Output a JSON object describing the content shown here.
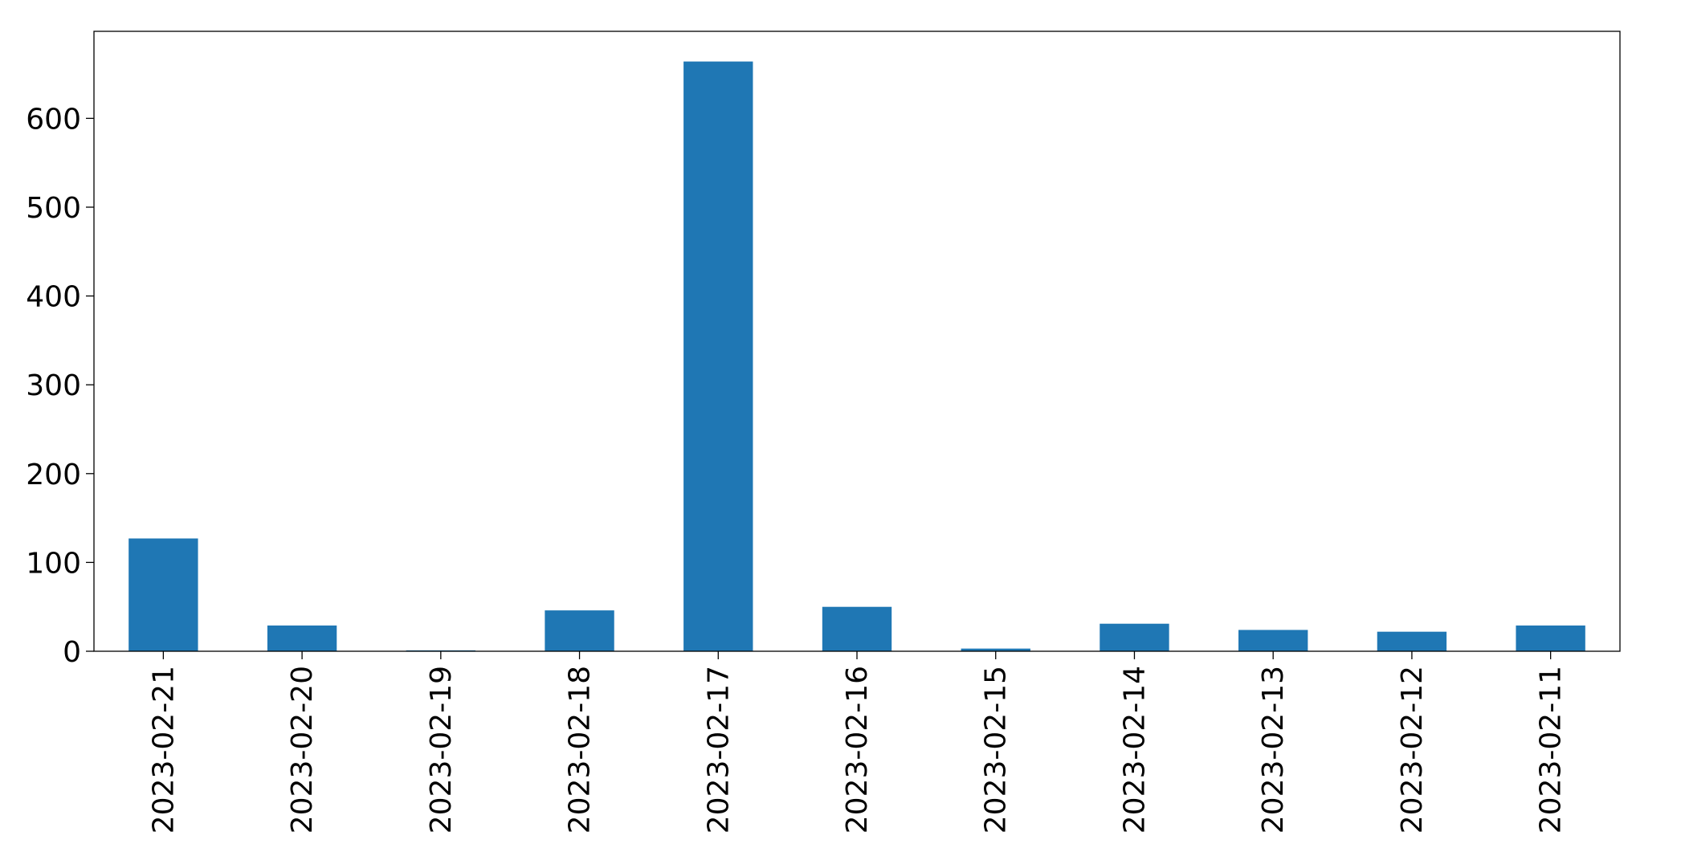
{
  "chart_data": {
    "type": "bar",
    "title": "",
    "xlabel": "",
    "ylabel": "",
    "categories": [
      "2023-02-21",
      "2023-02-20",
      "2023-02-19",
      "2023-02-18",
      "2023-02-17",
      "2023-02-16",
      "2023-02-15",
      "2023-02-14",
      "2023-02-13",
      "2023-02-12",
      "2023-02-11"
    ],
    "values": [
      127,
      29,
      1,
      46,
      664,
      50,
      3,
      31,
      24,
      22,
      29
    ],
    "ylim": [
      0,
      698
    ],
    "yticks": [
      0,
      100,
      200,
      300,
      400,
      500,
      600
    ],
    "bar_color": "#1f77b4",
    "grid": false,
    "legend": false
  }
}
